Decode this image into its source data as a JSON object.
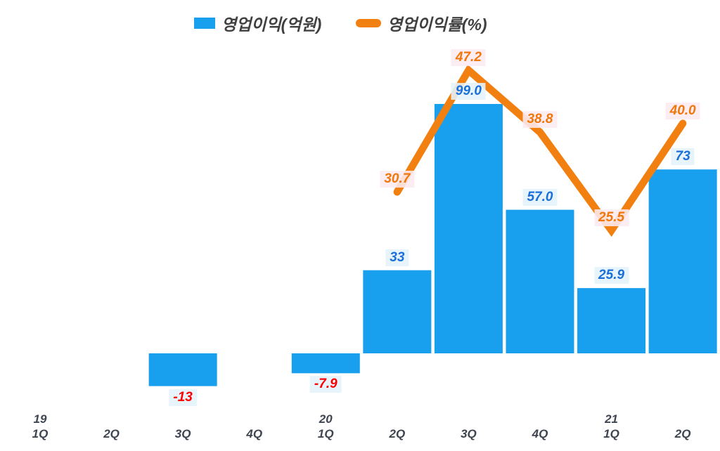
{
  "chart_data": {
    "type": "bar+line",
    "title": "",
    "grid": false,
    "legend_position": "top-center",
    "categories": [
      {
        "year": "19",
        "quarter": "1Q"
      },
      {
        "year": "",
        "quarter": "2Q"
      },
      {
        "year": "",
        "quarter": "3Q"
      },
      {
        "year": "",
        "quarter": "4Q"
      },
      {
        "year": "20",
        "quarter": "1Q"
      },
      {
        "year": "",
        "quarter": "2Q"
      },
      {
        "year": "",
        "quarter": "3Q"
      },
      {
        "year": "",
        "quarter": "4Q"
      },
      {
        "year": "21",
        "quarter": "1Q"
      },
      {
        "year": "",
        "quarter": "2Q"
      }
    ],
    "series": [
      {
        "name": "영업이익(억원)",
        "type": "bar",
        "values": [
          null,
          null,
          -13,
          null,
          -7.9,
          33,
          99,
          57,
          25.9,
          73
        ],
        "labels": [
          null,
          null,
          "-13",
          null,
          "-7.9",
          "33",
          "99.0",
          "57.0",
          "25.9",
          "73"
        ]
      },
      {
        "name": "영업이익률(%)",
        "type": "line",
        "values": [
          null,
          null,
          null,
          null,
          null,
          30.7,
          47.2,
          38.8,
          25.5,
          40.0
        ],
        "labels": [
          null,
          null,
          null,
          null,
          null,
          "30.7",
          "47.2",
          "38.8",
          "25.5",
          "40.0"
        ]
      }
    ],
    "bar_ylim": [
      -20,
      120
    ],
    "line_ylim": [
      0,
      50
    ],
    "colors": {
      "bar": "#189FEE",
      "line": "#F28011",
      "bar_label_text": "#1B6FD8",
      "negative_label_text": "#FF0000",
      "line_label_text": "#F0770B",
      "bar_label_bg": "#E4F2FC",
      "line_label_bg": "#FCEBF0",
      "axis_text": "#3E4450",
      "legend_text": "#404040"
    }
  }
}
